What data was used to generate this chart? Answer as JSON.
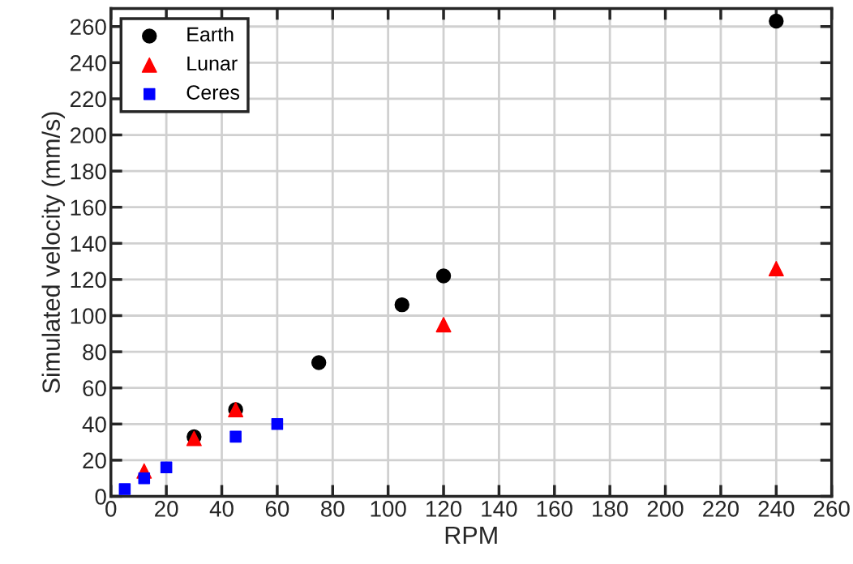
{
  "chart_data": {
    "type": "scatter",
    "xlabel": "RPM",
    "ylabel": "Simulated velocity (mm/s)",
    "xlim": [
      0,
      260
    ],
    "xticks": [
      0,
      20,
      40,
      60,
      80,
      100,
      120,
      140,
      160,
      180,
      200,
      220,
      240,
      260
    ],
    "ylim": [
      0,
      270
    ],
    "yticks": [
      0,
      20,
      40,
      60,
      80,
      100,
      120,
      140,
      160,
      180,
      200,
      220,
      240,
      260
    ],
    "grid": true,
    "legend": "top left",
    "series": [
      {
        "name": "Earth",
        "color": "#000000",
        "marker": "circle",
        "x": [
          30,
          45,
          75,
          105,
          120,
          240
        ],
        "values": [
          33,
          48,
          74,
          106,
          122,
          263
        ]
      },
      {
        "name": "Lunar",
        "color": "#ff0000",
        "marker": "triangle",
        "x": [
          12,
          30,
          45,
          120,
          240
        ],
        "values": [
          14,
          32,
          48,
          95,
          126
        ]
      },
      {
        "name": "Ceres",
        "color": "#0000ff",
        "marker": "square",
        "x": [
          5,
          12,
          20,
          45,
          60
        ],
        "values": [
          4,
          10,
          16,
          33,
          40
        ]
      }
    ]
  }
}
